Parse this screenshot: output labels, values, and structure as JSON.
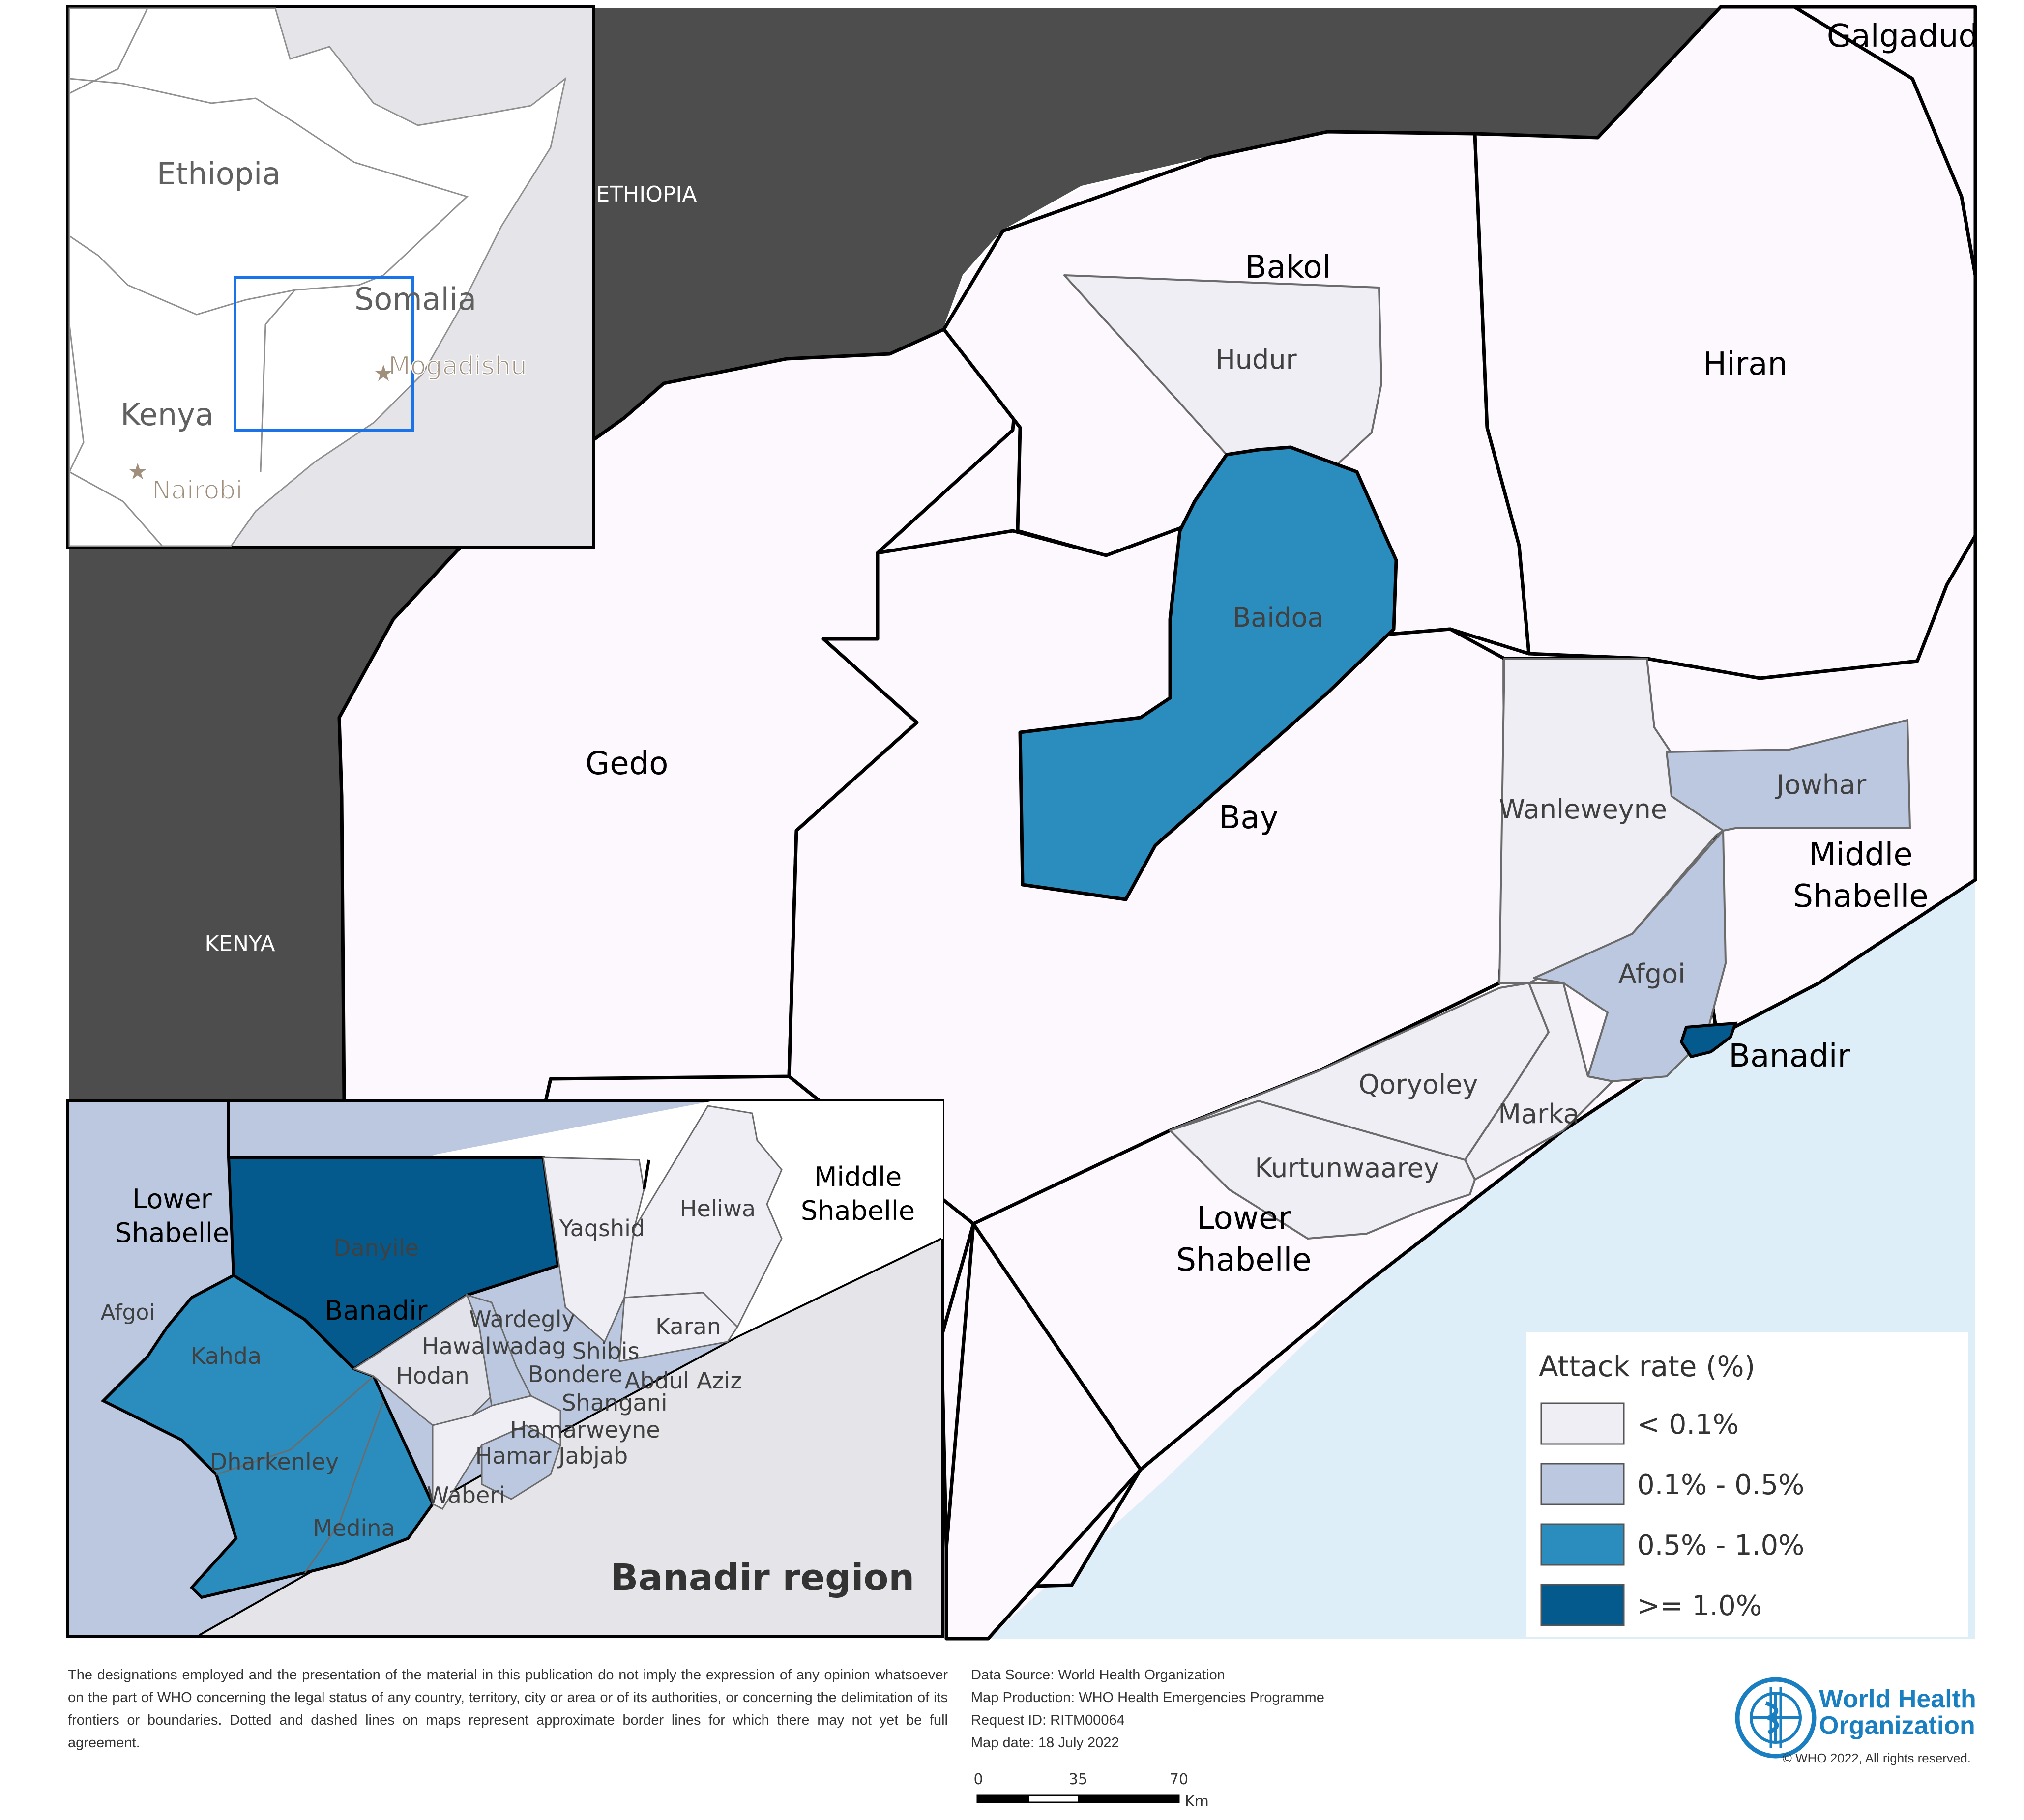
{
  "map": {
    "inset_countries": {
      "ethiopia": "Ethiopia",
      "somalia": "Somalia",
      "kenya": "Kenya",
      "mogadishu": "Mogadishu",
      "nairobi": "Nairobi"
    },
    "neighbours": {
      "ethiopia": "ETHIOPIA",
      "kenya": "KENYA"
    },
    "regions": {
      "galgadud": "Galgadud",
      "bakol": "Bakol",
      "hiran": "Hiran",
      "gedo": "Gedo",
      "bay": "Bay",
      "middle_shabelle_1": "Middle",
      "middle_shabelle_2": "Shabelle",
      "lower_shabelle_1": "Lower",
      "lower_shabelle_2": "Shabelle",
      "banadir": "Banadir"
    },
    "districts": {
      "hudur": "Hudur",
      "baidoa": "Baidoa",
      "wanleweyne": "Wanleweyne",
      "jowhar": "Jowhar",
      "afgoi": "Afgoi",
      "qoryoley": "Qoryoley",
      "marka": "Marka",
      "kurtunwaarey": "Kurtunwaarey"
    },
    "banadir_inset": {
      "title": "Banadir region",
      "lower_shabelle_1": "Lower",
      "lower_shabelle_2": "Shabelle",
      "middle_shabelle_1": "Middle",
      "middle_shabelle_2": "Shabelle",
      "banadir": "Banadir",
      "afgoi": "Afgoi",
      "districts": {
        "danyile": "Danyile",
        "yaqshid": "Yaqshid",
        "heliwa": "Heliwa",
        "kahda": "Kahda",
        "wardegly": "Wardegly",
        "hawalwadag": "Hawalwadag",
        "hodan": "Hodan",
        "shibis": "Shibis",
        "bondere": "Bondere",
        "karan": "Karan",
        "abdul_aziz": "Abdul Aziz",
        "shangani": "Shangani",
        "hamarweyne": "Hamarweyne",
        "hamar_jabjab": "Hamar Jabjab",
        "dharkenley": "Dharkenley",
        "waberi": "Waberi",
        "medina": "Medina"
      }
    }
  },
  "legend": {
    "title": "Attack rate (%)",
    "items": [
      {
        "label": "< 0.1%",
        "color": "#efeef4"
      },
      {
        "label": "0.1% - 0.5%",
        "color": "#bcc8e0"
      },
      {
        "label": "0.5% - 1.0%",
        "color": "#2b8cbe"
      },
      {
        "label": ">= 1.0%",
        "color": "#045a8d"
      }
    ]
  },
  "colors": {
    "neighbour": "#4d4d4d",
    "sea": "#ddeef8",
    "region_fill": "#fdf8fd",
    "inset_frame": "#1a73e8"
  },
  "footer": {
    "disclaimer": "The designations employed and the presentation of the material in this publication do not imply the expression of any opinion whatsoever on the part of WHO concerning the legal status of any country, territory, city or area or of its authorities, or concerning the delimitation of its frontiers or boundaries. Dotted and dashed lines on maps represent approximate border lines for which there may not yet be full agreement.",
    "data_source": "Data Source: World Health Organization",
    "map_production": "Map Production: WHO Health Emergencies Programme",
    "request_id": "Request ID: RITM00064",
    "map_date": "Map date: 18 July 2022",
    "scale_0": "0",
    "scale_35": "35",
    "scale_70": "70",
    "scale_unit": "Km",
    "who_name_1": "World Health",
    "who_name_2": "Organization",
    "copyright": "© WHO 2022, All rights reserved."
  }
}
